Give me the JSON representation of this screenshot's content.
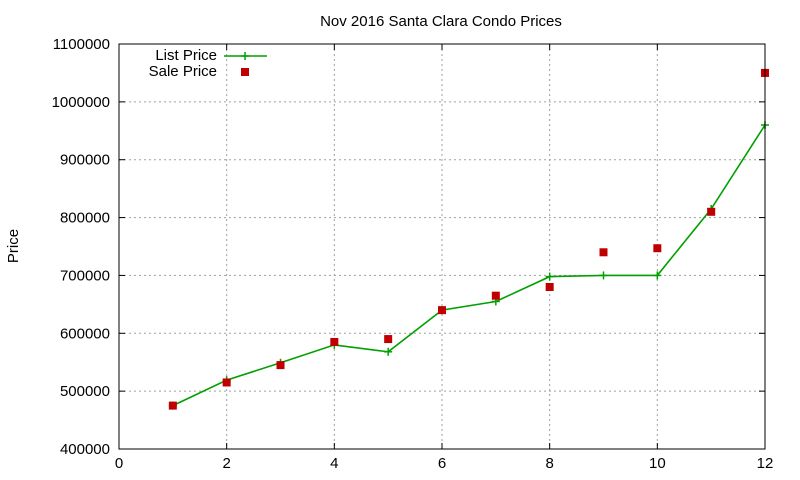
{
  "chart_data": {
    "type": "line",
    "title": "Nov 2016 Santa Clara Condo Prices",
    "xlabel": "",
    "ylabel": "Price",
    "xlim": [
      0,
      12
    ],
    "ylim": [
      400000,
      1100000
    ],
    "x_ticks": [
      0,
      2,
      4,
      6,
      8,
      10,
      12
    ],
    "y_ticks": [
      400000,
      500000,
      600000,
      700000,
      800000,
      900000,
      1000000,
      1100000
    ],
    "grid": true,
    "legend_position": "top-left",
    "series": [
      {
        "name": "List Price",
        "style": "line-with-plus-markers",
        "color": "#00a000",
        "points": [
          [
            1,
            475000
          ],
          [
            2,
            519000
          ],
          [
            3,
            549000
          ],
          [
            4,
            580000
          ],
          [
            5,
            568000
          ],
          [
            6,
            640000
          ],
          [
            7,
            655000
          ],
          [
            8,
            698000
          ],
          [
            9,
            700000
          ],
          [
            10,
            700000
          ],
          [
            11,
            815000
          ],
          [
            12,
            960000
          ]
        ]
      },
      {
        "name": "Sale Price",
        "style": "square-markers",
        "color": "#c00000",
        "points": [
          [
            1,
            475000
          ],
          [
            2,
            515000
          ],
          [
            3,
            545000
          ],
          [
            4,
            585000
          ],
          [
            5,
            590000
          ],
          [
            6,
            640000
          ],
          [
            7,
            665000
          ],
          [
            8,
            680000
          ],
          [
            9,
            740000
          ],
          [
            10,
            747000
          ],
          [
            11,
            810000
          ],
          [
            12,
            1050000
          ]
        ]
      }
    ]
  }
}
